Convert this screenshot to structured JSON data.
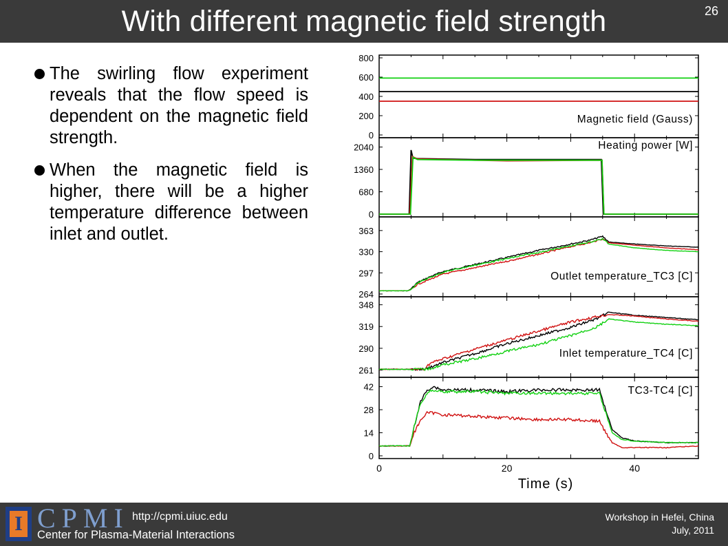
{
  "header": {
    "title": "With different magnetic field strength",
    "slide_number": "26"
  },
  "bullets": [
    "The swirling flow experiment reveals that the flow speed is dependent on the magnetic field strength.",
    "When the magnetic field is higher, there will be a higher temperature difference between inlet and outlet."
  ],
  "footer": {
    "logo_glyph": "I",
    "org_acronym": "CPMI",
    "url": "http://cpmi.uiuc.edu",
    "org_name": "Center for Plasma-Material Interactions",
    "event_line1": "Workshop in Hefei, China",
    "event_line2": "July, 2011"
  },
  "chart_data": {
    "type": "line",
    "xlabel": "Time (s)",
    "xlim": [
      0,
      50
    ],
    "xticks": [
      0,
      20,
      40
    ],
    "colors": {
      "black": "#000000",
      "red": "#d01010",
      "green": "#10d010"
    },
    "panels": [
      {
        "label": "Magnetic field (Gauss)",
        "ylim": [
          0,
          800
        ],
        "yticks": [
          0,
          200,
          400,
          600,
          800
        ],
        "series": [
          {
            "color": "green",
            "x": [
              0,
              50
            ],
            "y": [
              590,
              590
            ]
          },
          {
            "color": "black",
            "x": [
              0,
              50
            ],
            "y": [
              450,
              450
            ]
          },
          {
            "color": "red",
            "x": [
              0,
              50
            ],
            "y": [
              350,
              350
            ]
          }
        ]
      },
      {
        "label": "Heating power [W]",
        "ylim": [
          0,
          2240
        ],
        "yticks": [
          0,
          680,
          1360,
          2040
        ],
        "series": [
          {
            "color": "black",
            "x": [
              0,
              4.7,
              5.0,
              5.3,
              6,
              15,
              34.8,
              35.1,
              50
            ],
            "y": [
              0,
              0,
              1950,
              1700,
              1690,
              1660,
              1660,
              0,
              0
            ]
          },
          {
            "color": "red",
            "x": [
              0,
              4.8,
              5.2,
              6,
              15,
              20,
              34.9,
              35.2,
              50
            ],
            "y": [
              0,
              0,
              1750,
              1680,
              1640,
              1620,
              1640,
              0,
              0
            ]
          },
          {
            "color": "green",
            "x": [
              0,
              4.9,
              5.3,
              6,
              15,
              34.9,
              35.2,
              50
            ],
            "y": [
              0,
              0,
              1730,
              1660,
              1640,
              1640,
              0,
              0
            ]
          }
        ]
      },
      {
        "label": "Outlet temperature_TC3 [C]",
        "ylim": [
          264,
          380
        ],
        "yticks": [
          264,
          297,
          330,
          363
        ],
        "series": [
          {
            "color": "black",
            "x": [
              0,
              4.5,
              5,
              6,
              8,
              10,
              15,
              20,
              25,
              30,
              33,
              35,
              36,
              40,
              45,
              50
            ],
            "y": [
              269,
              269,
              272,
              282,
              291,
              299,
              310,
              321,
              332,
              342,
              348,
              354,
              345,
              342,
              339,
              337
            ]
          },
          {
            "color": "red",
            "x": [
              0,
              4.5,
              5,
              6,
              8,
              10,
              15,
              20,
              25,
              30,
              33,
              35,
              36,
              40,
              45,
              50
            ],
            "y": [
              269,
              269,
              271,
              279,
              287,
              295,
              305,
              315,
              326,
              338,
              344,
              350,
              344,
              340,
              336,
              333
            ]
          },
          {
            "color": "green",
            "x": [
              0,
              4.5,
              5,
              6,
              8,
              10,
              15,
              20,
              25,
              30,
              33,
              35,
              36,
              40,
              45,
              50
            ],
            "y": [
              269,
              269,
              271,
              281,
              290,
              298,
              309,
              319,
              329,
              339,
              345,
              350,
              342,
              336,
              332,
              330
            ]
          }
        ]
      },
      {
        "label": "Inlet temperature_TC4 [C]",
        "ylim": [
          255,
          355
        ],
        "yticks": [
          261,
          290,
          319,
          348
        ],
        "series": [
          {
            "color": "black",
            "x": [
              0,
              7,
              8,
              10,
              15,
              20,
              25,
              30,
              34,
              36,
              40,
              45,
              50
            ],
            "y": [
              262,
              262,
              265,
              271,
              283,
              296,
              307,
              318,
              329,
              338,
              334,
              331,
              328
            ]
          },
          {
            "color": "red",
            "x": [
              0,
              7,
              8,
              10,
              15,
              20,
              25,
              30,
              34,
              36,
              40,
              45,
              50
            ],
            "y": [
              262,
              262,
              270,
              276,
              289,
              301,
              313,
              325,
              332,
              335,
              333,
              329,
              326
            ]
          },
          {
            "color": "green",
            "x": [
              0,
              7,
              8,
              10,
              15,
              20,
              25,
              30,
              34,
              36,
              40,
              45,
              50
            ],
            "y": [
              262,
              262,
              263,
              268,
              276,
              286,
              295,
              307,
              318,
              329,
              325,
              322,
              320
            ]
          }
        ]
      },
      {
        "label": "TC3-TC4 [C]",
        "ylim": [
          0,
          46
        ],
        "yticks": [
          0,
          14,
          28,
          42
        ],
        "series": [
          {
            "color": "black",
            "x": [
              0,
              4.8,
              5.5,
              6.5,
              7.5,
              8.5,
              10,
              15,
              20,
              25,
              30,
              34.5,
              35.5,
              36.5,
              38,
              40,
              45,
              50
            ],
            "y": [
              6,
              6,
              18,
              33,
              40,
              42,
              40,
              40,
              39,
              40,
              40,
              40,
              28,
              16,
              11,
              9,
              8,
              8
            ]
          },
          {
            "color": "red",
            "x": [
              0,
              4.8,
              5.5,
              6.5,
              7.5,
              8.5,
              10,
              15,
              20,
              25,
              30,
              34.5,
              35.5,
              36.5,
              38,
              40,
              45,
              50
            ],
            "y": [
              6,
              6,
              14,
              22,
              26,
              26,
              25,
              24,
              23,
              22,
              22,
              21,
              14,
              8,
              5,
              5,
              5,
              6
            ]
          },
          {
            "color": "green",
            "x": [
              0,
              4.8,
              5.5,
              6.5,
              7.5,
              8.5,
              10,
              15,
              20,
              25,
              30,
              34.5,
              35.5,
              36.5,
              38,
              40,
              45,
              50
            ],
            "y": [
              6,
              6,
              18,
              32,
              38,
              40,
              39,
              39,
              38,
              38,
              38,
              38,
              26,
              14,
              10,
              9,
              8,
              8
            ]
          }
        ]
      }
    ]
  }
}
